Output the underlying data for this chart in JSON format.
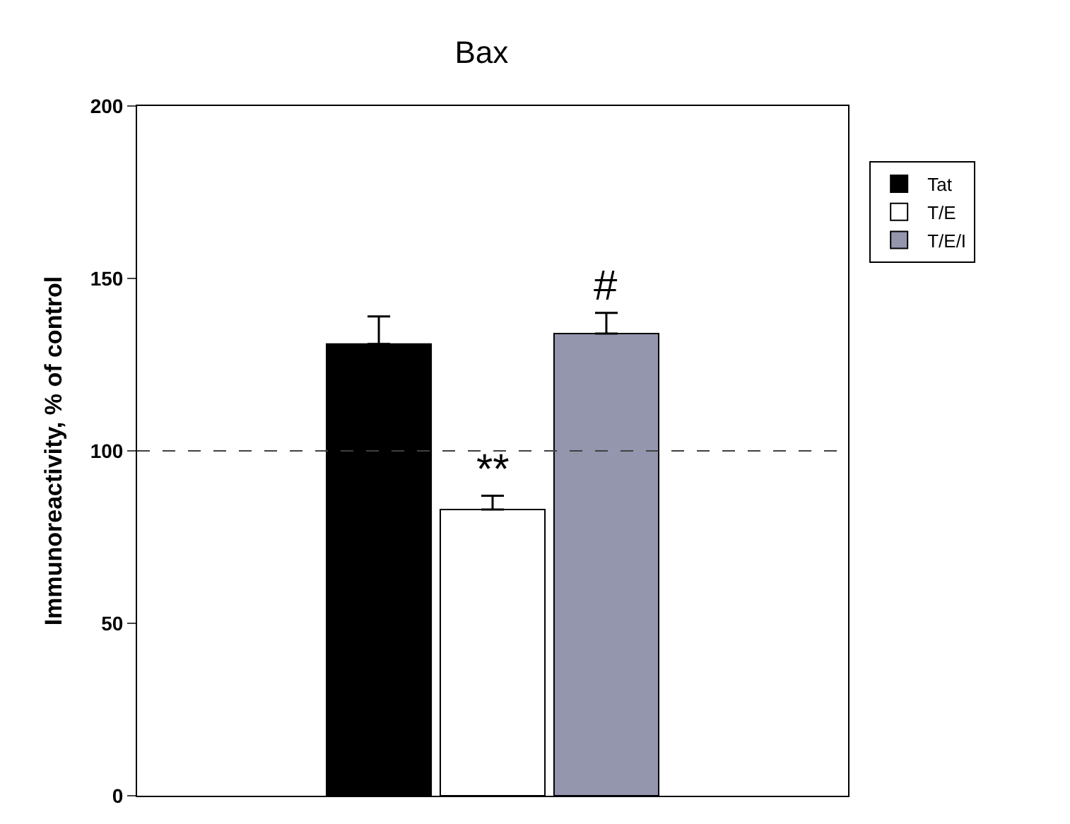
{
  "chart_data": {
    "type": "bar",
    "title": "Bax",
    "ylabel": "Immunoreactivity, % of control",
    "categories": [
      null
    ],
    "series": [
      {
        "name": "Tat",
        "color": "#000000",
        "values": [
          131
        ],
        "errors": [
          [
            131,
            139
          ]
        ]
      },
      {
        "name": "T/E",
        "color": "#ffffff",
        "values": [
          83
        ],
        "errors": [
          [
            83,
            87
          ]
        ]
      },
      {
        "name": "T/E/I",
        "color": "#9496ae",
        "values": [
          134
        ],
        "errors": [
          [
            134,
            140
          ]
        ]
      }
    ],
    "ylim": [
      0,
      200
    ],
    "yticks": [
      0,
      50,
      100,
      150,
      200
    ],
    "legend": "top right",
    "ref_lines": [
      {
        "axis": "y",
        "value": 100,
        "label": null,
        "color": "#404040",
        "line_style": "dashed"
      }
    ],
    "annotations": [
      {
        "text": "**",
        "y": 87
      },
      {
        "text": "#",
        "y": 140
      }
    ]
  }
}
